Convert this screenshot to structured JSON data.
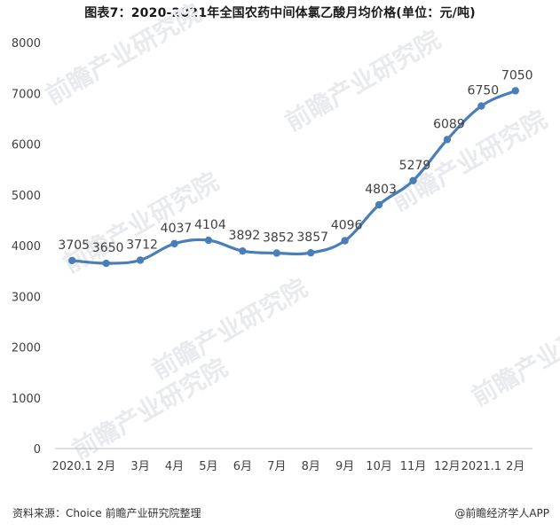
{
  "title": "图表7：2020-2021年全国农药中间体氯乙酸月均价格(单位：元/吨)",
  "watermark_text": "前瞻产业研究院",
  "footer": {
    "source": "资料来源：Choice 前瞻产业研究院整理",
    "brand": "@前瞻经济学人APP"
  },
  "colors": {
    "line": "#4a7ebb",
    "marker": "#4a7ebb",
    "axis": "#bfbfbf",
    "text": "#404040"
  },
  "chart_data": {
    "type": "line",
    "title": "2020-2021年全国农药中间体氯乙酸月均价格(单位：元/吨)",
    "categories": [
      "2020.1",
      "2月",
      "3月",
      "4月",
      "5月",
      "6月",
      "7月",
      "8月",
      "9月",
      "10月",
      "11月",
      "12月",
      "2021.1",
      "2月"
    ],
    "series": [
      {
        "name": "氯乙酸月均价格",
        "values": [
          3705,
          3650,
          3712,
          4037,
          4104,
          3892,
          3852,
          3857,
          4096,
          4803,
          5279,
          6089,
          6750,
          7050
        ]
      }
    ],
    "yticks": [
      0,
      1000,
      2000,
      3000,
      4000,
      5000,
      6000,
      7000,
      8000
    ],
    "ylim": [
      0,
      8000
    ],
    "xlabel": "",
    "ylabel": "",
    "grid": false,
    "smooth": true
  }
}
